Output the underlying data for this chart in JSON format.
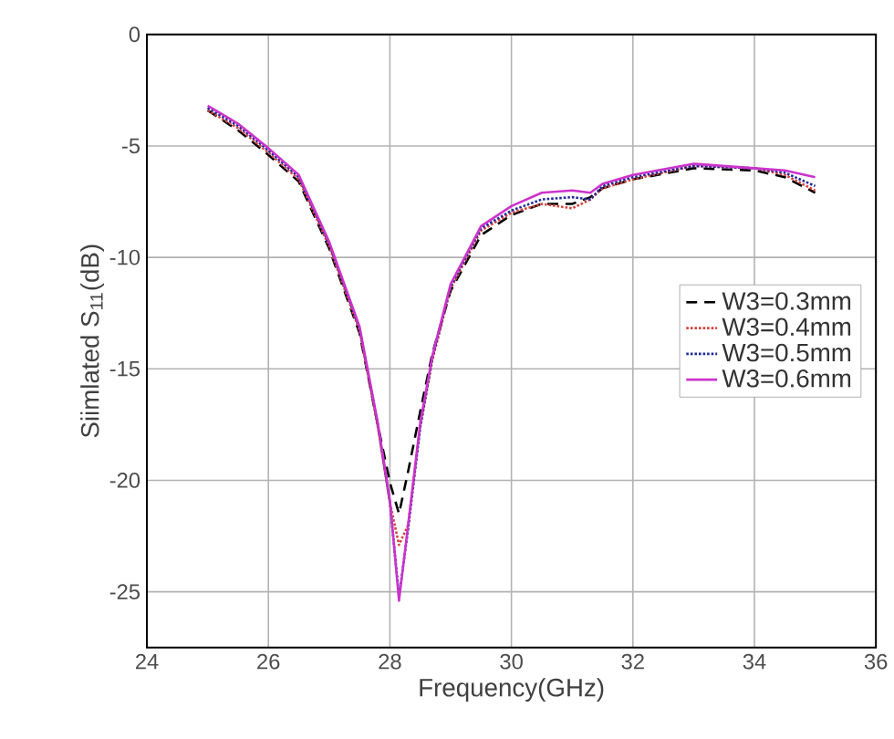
{
  "chart_data": {
    "type": "line",
    "xlabel": "Frequency(GHz)",
    "ylabel": "Siimlated S$_{11}$(dB)",
    "x": [
      25,
      25.5,
      26,
      26.5,
      27,
      27.5,
      27.8,
      28,
      28.15,
      28.3,
      28.5,
      28.7,
      29,
      29.5,
      30,
      30.5,
      31,
      31.3,
      31.5,
      32,
      33,
      34,
      34.5,
      35
    ],
    "series": [
      {
        "name": "W3=0.3mm",
        "color": "#000000",
        "line_style": "dashed",
        "values": [
          -3.4,
          -4.3,
          -5.4,
          -6.6,
          -9.6,
          -13.4,
          -17.5,
          -20.1,
          -21.5,
          -19.6,
          -16.9,
          -14.3,
          -11.5,
          -9.0,
          -8.1,
          -7.6,
          -7.6,
          -7.3,
          -6.9,
          -6.5,
          -6.0,
          -6.1,
          -6.4,
          -7.1
        ]
      },
      {
        "name": "W3=0.4mm",
        "color": "#d9413a",
        "line_style": "dotted",
        "values": [
          -3.4,
          -4.2,
          -5.3,
          -6.5,
          -9.5,
          -13.3,
          -17.6,
          -21.0,
          -22.9,
          -22.0,
          -17.6,
          -14.6,
          -11.4,
          -8.8,
          -8.0,
          -7.6,
          -7.8,
          -7.4,
          -6.9,
          -6.5,
          -5.9,
          -6.0,
          -6.3,
          -7.0
        ]
      },
      {
        "name": "W3=0.5mm",
        "color": "#1f2a9e",
        "line_style": "dotted",
        "values": [
          -3.3,
          -4.1,
          -5.2,
          -6.4,
          -9.4,
          -13.2,
          -17.5,
          -21.0,
          -25.2,
          -22.2,
          -17.6,
          -14.5,
          -11.3,
          -8.7,
          -7.9,
          -7.4,
          -7.3,
          -7.4,
          -6.8,
          -6.4,
          -5.9,
          -6.0,
          -6.2,
          -6.8
        ]
      },
      {
        "name": "W3=0.6mm",
        "color": "#cc33cc",
        "line_style": "solid",
        "values": [
          -3.2,
          -4.0,
          -5.1,
          -6.3,
          -9.3,
          -13.1,
          -17.4,
          -20.9,
          -25.4,
          -22.0,
          -17.4,
          -14.4,
          -11.2,
          -8.6,
          -7.7,
          -7.1,
          -7.0,
          -7.1,
          -6.7,
          -6.3,
          -5.8,
          -6.0,
          -6.1,
          -6.4
        ]
      }
    ],
    "xlim": [
      24,
      36
    ],
    "xticks": [
      24,
      26,
      28,
      30,
      32,
      34,
      36
    ],
    "ylim": [
      -27.5,
      0
    ],
    "yticks": [
      -25,
      -20,
      -15,
      -10,
      -5,
      0
    ],
    "grid": true,
    "legend": "right"
  }
}
